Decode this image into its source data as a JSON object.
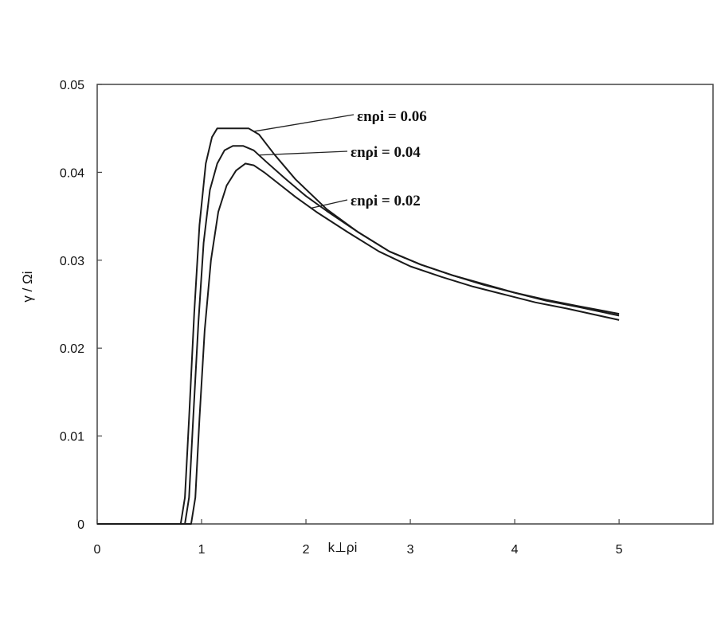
{
  "chart_data": {
    "type": "line",
    "title": "",
    "xlabel": "k⊥ρi",
    "ylabel": "γ / Ωi",
    "xlim": [
      0,
      5.9
    ],
    "ylim": [
      0,
      0.05
    ],
    "x_ticks": [
      "0",
      "1",
      "2",
      "3",
      "4",
      "5"
    ],
    "y_ticks": [
      "0",
      "0.01",
      "0.02",
      "0.03",
      "0.04",
      "0.05"
    ],
    "grid": false,
    "legend": "annotations",
    "series": [
      {
        "name": "εnρi = 0.06",
        "points": [
          [
            0,
            0
          ],
          [
            0.8,
            0
          ],
          [
            0.84,
            0.003
          ],
          [
            0.88,
            0.012
          ],
          [
            0.93,
            0.024
          ],
          [
            0.98,
            0.034
          ],
          [
            1.04,
            0.041
          ],
          [
            1.1,
            0.044
          ],
          [
            1.15,
            0.045
          ],
          [
            1.25,
            0.045
          ],
          [
            1.35,
            0.045
          ],
          [
            1.45,
            0.045
          ],
          [
            1.55,
            0.0443
          ],
          [
            1.7,
            0.042
          ],
          [
            1.9,
            0.0392
          ],
          [
            2.2,
            0.0358
          ],
          [
            2.5,
            0.0332
          ],
          [
            2.8,
            0.031
          ],
          [
            3.1,
            0.0295
          ],
          [
            3.4,
            0.0283
          ],
          [
            3.7,
            0.0273
          ],
          [
            4.0,
            0.0263
          ],
          [
            4.3,
            0.0255
          ],
          [
            4.6,
            0.0248
          ],
          [
            5.0,
            0.0239
          ]
        ]
      },
      {
        "name": "εnρi = 0.04",
        "points": [
          [
            0,
            0
          ],
          [
            0.84,
            0
          ],
          [
            0.88,
            0.003
          ],
          [
            0.92,
            0.012
          ],
          [
            0.97,
            0.023
          ],
          [
            1.02,
            0.032
          ],
          [
            1.08,
            0.038
          ],
          [
            1.15,
            0.041
          ],
          [
            1.22,
            0.0425
          ],
          [
            1.3,
            0.043
          ],
          [
            1.4,
            0.043
          ],
          [
            1.5,
            0.0425
          ],
          [
            1.62,
            0.0412
          ],
          [
            1.8,
            0.0393
          ],
          [
            2.0,
            0.0373
          ],
          [
            2.2,
            0.0356
          ],
          [
            2.5,
            0.0332
          ],
          [
            2.8,
            0.031
          ],
          [
            3.1,
            0.0295
          ],
          [
            3.4,
            0.0283
          ],
          [
            3.7,
            0.0272
          ],
          [
            4.0,
            0.0263
          ],
          [
            4.3,
            0.0254
          ],
          [
            4.6,
            0.0247
          ],
          [
            5.0,
            0.0237
          ]
        ]
      },
      {
        "name": "εnρi = 0.02",
        "points": [
          [
            0,
            0
          ],
          [
            0.9,
            0
          ],
          [
            0.94,
            0.003
          ],
          [
            0.98,
            0.012
          ],
          [
            1.03,
            0.022
          ],
          [
            1.09,
            0.03
          ],
          [
            1.16,
            0.0355
          ],
          [
            1.24,
            0.0385
          ],
          [
            1.33,
            0.0402
          ],
          [
            1.42,
            0.041
          ],
          [
            1.5,
            0.0408
          ],
          [
            1.6,
            0.04
          ],
          [
            1.75,
            0.0386
          ],
          [
            1.9,
            0.0372
          ],
          [
            2.1,
            0.0355
          ],
          [
            2.4,
            0.0332
          ],
          [
            2.7,
            0.031
          ],
          [
            3.0,
            0.0293
          ],
          [
            3.3,
            0.0281
          ],
          [
            3.6,
            0.027
          ],
          [
            3.9,
            0.0261
          ],
          [
            4.2,
            0.0252
          ],
          [
            4.5,
            0.0245
          ],
          [
            5.0,
            0.0232
          ]
        ]
      }
    ],
    "annotations": [
      {
        "text": "εnρi = 0.06",
        "series": 0
      },
      {
        "text": "εnρi = 0.04",
        "series": 1
      },
      {
        "text": "εnρi = 0.02",
        "series": 2
      }
    ]
  }
}
